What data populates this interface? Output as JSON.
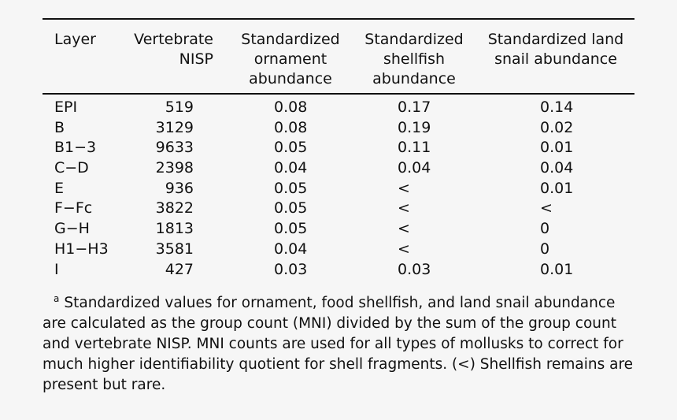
{
  "table": {
    "headers": [
      "Layer",
      "Vertebrate\nNISP",
      "Standardized\nornament\nabundance",
      "Standardized\nshellfish\nabundance",
      "Standardized land\nsnail abundance"
    ],
    "rows": [
      [
        "EPI",
        "519",
        "0.08",
        "0.17",
        "0.14"
      ],
      [
        "B",
        "3129",
        "0.08",
        "0.19",
        "0.02"
      ],
      [
        "B1−3",
        "9633",
        "0.05",
        "0.11",
        "0.01"
      ],
      [
        "C−D",
        "2398",
        "0.04",
        "0.04",
        "0.04"
      ],
      [
        "E",
        "936",
        "0.05",
        "<",
        "0.01"
      ],
      [
        "F−Fc",
        "3822",
        "0.05",
        "<",
        "<"
      ],
      [
        "G−H",
        "1813",
        "0.05",
        "<",
        "0"
      ],
      [
        "H1−H3",
        "3581",
        "0.04",
        "<",
        "0"
      ],
      [
        "I",
        "427",
        "0.03",
        "0.03",
        "0.01"
      ]
    ]
  },
  "footnote": {
    "marker": "a",
    "text": "Standardized values for ornament, food shellfish, and land snail abundance are calculated as the group count (MNI) divided by the sum of the group count and vertebrate NISP. MNI counts are used for all types of mollusks to correct for much higher identifiability quotient for shell fragments. (<) Shellfish remains are present but rare."
  }
}
